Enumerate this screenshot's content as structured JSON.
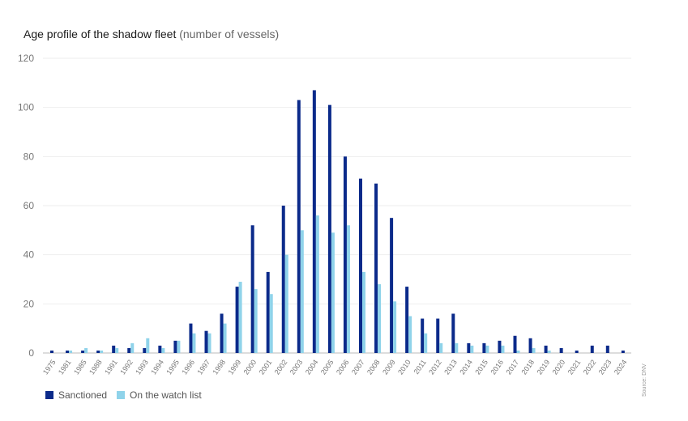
{
  "header": {
    "title": "Age profile of the shadow fleet",
    "subtitle": "(number of vessels)"
  },
  "legend": {
    "sanctioned": "Sanctioned",
    "watch": "On the watch list"
  },
  "source": "Source: DNV",
  "colors": {
    "sanctioned": "#0b2a8a",
    "watch": "#8fd3ea",
    "grid": "#eeeeee",
    "axis": "#bbbbbb"
  },
  "chart_data": {
    "type": "bar",
    "title": "Age profile of the shadow fleet (number of vessels)",
    "xlabel": "",
    "ylabel": "",
    "ylim": [
      0,
      120
    ],
    "yticks": [
      0,
      20,
      40,
      60,
      80,
      100,
      120
    ],
    "categories": [
      "1975",
      "1981",
      "1985",
      "1988",
      "1991",
      "1992",
      "1993",
      "1994",
      "1995",
      "1996",
      "1997",
      "1998",
      "1999",
      "2000",
      "2001",
      "2002",
      "2003",
      "2004",
      "2005",
      "2006",
      "2007",
      "2008",
      "2009",
      "2010",
      "2011",
      "2012",
      "2013",
      "2014",
      "2015",
      "2016",
      "2017",
      "2018",
      "2019",
      "2020",
      "2021",
      "2022",
      "2023",
      "2024"
    ],
    "series": [
      {
        "name": "Sanctioned",
        "values": [
          1,
          1,
          1,
          1,
          3,
          2,
          2,
          3,
          5,
          12,
          9,
          16,
          27,
          52,
          33,
          60,
          103,
          107,
          101,
          80,
          71,
          69,
          55,
          27,
          14,
          14,
          16,
          4,
          4,
          5,
          7,
          6,
          3,
          2,
          1,
          3,
          3,
          1
        ]
      },
      {
        "name": "On the watch list",
        "values": [
          0,
          1,
          2,
          1,
          2,
          4,
          6,
          2,
          5,
          8,
          8,
          12,
          29,
          26,
          24,
          40,
          50,
          56,
          49,
          52,
          33,
          28,
          21,
          15,
          8,
          4,
          4,
          3,
          3,
          3,
          1,
          2,
          1,
          0,
          0,
          0,
          0,
          0
        ]
      }
    ],
    "legend_position": "bottom-left"
  }
}
